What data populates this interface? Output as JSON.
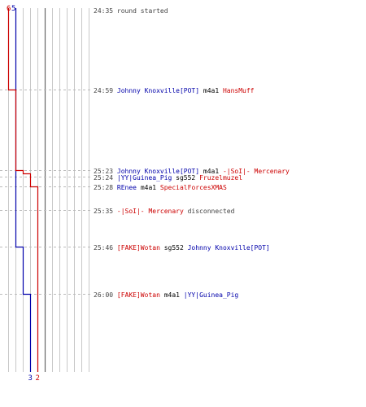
{
  "chart_data": {
    "type": "line",
    "title": "",
    "xlabel": "",
    "ylabel": "",
    "grid": true,
    "colors": {
      "blue": "#0000aa",
      "red": "#cc0000",
      "grid": "#c8c8c8",
      "dash": "#bbbbbb",
      "time": "#444444",
      "neutral": "#444444"
    },
    "series": [
      {
        "team": "blue",
        "start_score": 5,
        "end_score": 3,
        "steps": [
          {
            "time": "25:46",
            "score": 4
          },
          {
            "time": "26:00",
            "score": 3
          }
        ]
      },
      {
        "team": "red",
        "start_score": 6,
        "end_score": 2,
        "steps": [
          {
            "time": "24:59",
            "score": 5
          },
          {
            "time": "25:23",
            "score": 4
          },
          {
            "time": "25:24",
            "score": 3
          },
          {
            "time": "25:28",
            "score": 2
          }
        ]
      }
    ],
    "events": [
      {
        "time": "24:35",
        "parts": [
          {
            "text": "round started",
            "team": "neutral"
          }
        ]
      },
      {
        "time": "24:59",
        "parts": [
          {
            "text": "Johnny Knoxville[POT]",
            "team": "blue"
          },
          {
            "text": "m4a1",
            "team": "plain"
          },
          {
            "text": "HansMuff",
            "team": "red"
          }
        ]
      },
      {
        "time": "25:23",
        "parts": [
          {
            "text": "Johnny Knoxville[POT]",
            "team": "blue"
          },
          {
            "text": "m4a1",
            "team": "plain"
          },
          {
            "text": "-|SoI|- Mercenary",
            "team": "red"
          }
        ]
      },
      {
        "time": "25:24",
        "parts": [
          {
            "text": "|YY|Guinea_Pig",
            "team": "blue"
          },
          {
            "text": "sg552",
            "team": "plain"
          },
          {
            "text": "Fruzelmuzel",
            "team": "red"
          }
        ]
      },
      {
        "time": "25:28",
        "parts": [
          {
            "text": "REnee",
            "team": "blue"
          },
          {
            "text": "m4a1",
            "team": "plain"
          },
          {
            "text": "SpecialForcesXMAS",
            "team": "red"
          }
        ]
      },
      {
        "time": "25:35",
        "parts": [
          {
            "text": "-|SoI|- Mercenary",
            "team": "red"
          },
          {
            "text": "disconnected",
            "team": "neutral"
          }
        ]
      },
      {
        "time": "25:46",
        "parts": [
          {
            "text": "[FAKE]Wotan",
            "team": "red"
          },
          {
            "text": "sg552",
            "team": "plain"
          },
          {
            "text": "Johnny Knoxville[POT]",
            "team": "blue"
          }
        ]
      },
      {
        "time": "26:00",
        "parts": [
          {
            "text": "[FAKE]Wotan",
            "team": "red"
          },
          {
            "text": "m4a1",
            "team": "plain"
          },
          {
            "text": "|YY|Guinea_Pig",
            "team": "blue"
          }
        ]
      }
    ]
  }
}
